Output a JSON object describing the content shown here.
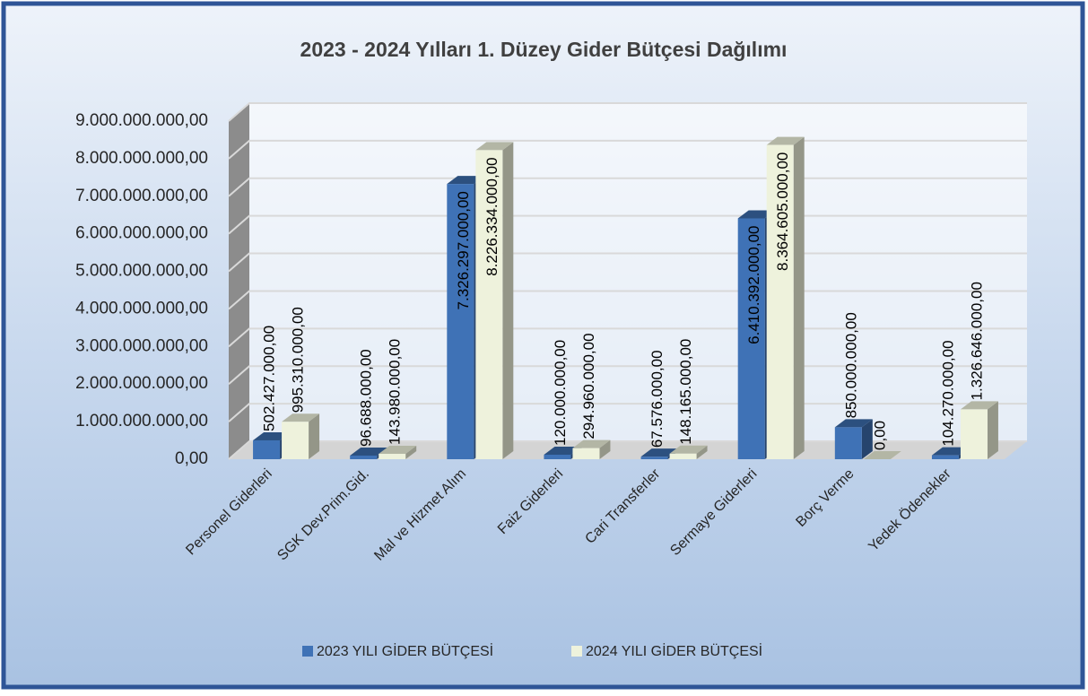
{
  "chart_data": {
    "type": "bar3d",
    "title": "2023 - 2024 Yılları 1. Düzey Gider Bütçesi Dağılımı",
    "categories": [
      "Personel Giderleri",
      "SGK Dev.Prim.Gid.",
      "Mal ve Hizmet Alım",
      "Faiz Giderleri",
      "Cari Transferler",
      "Sermaye Giderleri",
      "Borç Verme",
      "Yedek Ödenekler"
    ],
    "series": [
      {
        "name": "2023 YILI GİDER BÜTÇESİ",
        "color": "#3f72b6",
        "values": [
          502427000,
          96688000,
          7326297000,
          120000000,
          67576000,
          6410392000,
          850000000,
          104270000
        ],
        "value_labels": [
          "502.427.000,00",
          "96.688.000,00",
          "7.326.297.000,00",
          "120.000.000,00",
          "67.576.000,00",
          "6.410.392.000,00",
          "850.000.000,00",
          "104.270.000,00"
        ]
      },
      {
        "name": "2024 YILI GİDER BÜTÇESİ",
        "color": "#eef2dc",
        "values": [
          995310000,
          143980000,
          8226334000,
          294960000,
          148165000,
          8364605000,
          0,
          1326646000
        ],
        "value_labels": [
          "995.310.000,00",
          "143.980.000,00",
          "8.226.334.000,00",
          "294.960.000,00",
          "148.165.000,00",
          "8.364.605.000,00",
          "0,00",
          "1.326.646.000,00"
        ]
      }
    ],
    "ylim": [
      0,
      9000000000
    ],
    "yticks": [
      {
        "value": 0,
        "label": "0,00"
      },
      {
        "value": 1000000000,
        "label": "1.000.000.000,00"
      },
      {
        "value": 2000000000,
        "label": "2.000.000.000,00"
      },
      {
        "value": 3000000000,
        "label": "3.000.000.000,00"
      },
      {
        "value": 4000000000,
        "label": "4.000.000.000,00"
      },
      {
        "value": 5000000000,
        "label": "5.000.000.000,00"
      },
      {
        "value": 6000000000,
        "label": "6.000.000.000,00"
      },
      {
        "value": 7000000000,
        "label": "7.000.000.000,00"
      },
      {
        "value": 8000000000,
        "label": "8.000.000.000,00"
      },
      {
        "value": 9000000000,
        "label": "9.000.000.000,00"
      }
    ],
    "grid": true,
    "legend": "bottom"
  }
}
